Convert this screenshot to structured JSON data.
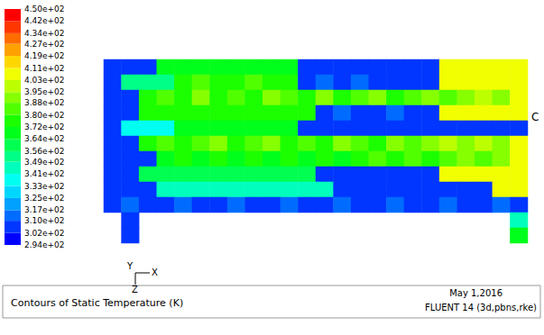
{
  "chart_data": {
    "type": "heatmap",
    "title": "Contours of Static Temperature (K)",
    "annotations": {
      "date": "May 1,2016",
      "solver": "FLUENT 14 (3d,pbns,rke)",
      "triad": [
        "Y",
        "X",
        "Z"
      ],
      "edge_label": "C"
    },
    "tick_labels": false,
    "cells": [
      [
        302,
        302,
        302,
        364,
        364,
        364,
        364,
        364,
        364,
        364,
        364,
        302,
        302,
        302,
        302,
        302,
        302,
        302,
        302,
        403,
        403,
        403,
        403,
        403
      ],
      [
        302,
        349,
        349,
        349,
        372,
        380,
        372,
        372,
        380,
        372,
        372,
        302,
        310,
        302,
        310,
        302,
        302,
        302,
        302,
        403,
        403,
        403,
        403,
        403
      ],
      [
        302,
        302,
        372,
        380,
        372,
        388,
        372,
        380,
        372,
        388,
        380,
        372,
        388,
        372,
        380,
        388,
        372,
        380,
        388,
        380,
        388,
        395,
        388,
        403
      ],
      [
        302,
        302,
        372,
        372,
        372,
        372,
        372,
        372,
        372,
        372,
        372,
        372,
        302,
        310,
        302,
        302,
        310,
        302,
        302,
        403,
        403,
        403,
        403,
        403
      ],
      [
        302,
        333,
        333,
        333,
        364,
        364,
        364,
        364,
        364,
        364,
        364,
        302,
        302,
        302,
        302,
        302,
        302,
        302,
        302,
        302,
        302,
        302,
        302,
        302
      ],
      [
        302,
        302,
        372,
        380,
        372,
        380,
        388,
        372,
        380,
        388,
        372,
        380,
        372,
        388,
        380,
        372,
        388,
        380,
        388,
        395,
        388,
        395,
        388,
        403
      ],
      [
        302,
        302,
        302,
        364,
        372,
        364,
        372,
        364,
        372,
        364,
        372,
        364,
        372,
        364,
        372,
        380,
        372,
        380,
        372,
        380,
        388,
        380,
        388,
        403
      ],
      [
        302,
        302,
        356,
        356,
        356,
        356,
        356,
        356,
        356,
        356,
        356,
        356,
        302,
        302,
        302,
        302,
        302,
        302,
        302,
        403,
        403,
        403,
        403,
        403
      ],
      [
        302,
        302,
        302,
        341,
        341,
        341,
        341,
        341,
        341,
        341,
        341,
        341,
        341,
        302,
        302,
        302,
        302,
        302,
        302,
        302,
        302,
        302,
        403,
        403
      ],
      [
        302,
        310,
        302,
        302,
        310,
        302,
        302,
        310,
        302,
        302,
        310,
        302,
        302,
        310,
        302,
        302,
        310,
        302,
        302,
        310,
        302,
        302,
        310,
        302
      ],
      [
        null,
        302,
        null,
        null,
        null,
        null,
        null,
        null,
        null,
        null,
        null,
        null,
        null,
        null,
        null,
        null,
        null,
        null,
        null,
        null,
        null,
        null,
        null,
        341
      ],
      [
        null,
        302,
        null,
        null,
        null,
        null,
        null,
        null,
        null,
        null,
        null,
        null,
        null,
        null,
        null,
        null,
        null,
        null,
        null,
        null,
        null,
        null,
        null,
        364
      ]
    ],
    "colorbar": {
      "range": [
        294,
        450
      ],
      "ticks": [
        {
          "value": 294,
          "label": "2.94e+02"
        },
        {
          "value": 302,
          "label": "3.02e+02"
        },
        {
          "value": 310,
          "label": "3.10e+02"
        },
        {
          "value": 317,
          "label": "3.17e+02"
        },
        {
          "value": 325,
          "label": "3.25e+02"
        },
        {
          "value": 333,
          "label": "3.33e+02"
        },
        {
          "value": 341,
          "label": "3.41e+02"
        },
        {
          "value": 349,
          "label": "3.49e+02"
        },
        {
          "value": 356,
          "label": "3.56e+02"
        },
        {
          "value": 364,
          "label": "3.64e+02"
        },
        {
          "value": 372,
          "label": "3.72e+02"
        },
        {
          "value": 380,
          "label": "3.80e+02"
        },
        {
          "value": 388,
          "label": "3.88e+02"
        },
        {
          "value": 395,
          "label": "3.95e+02"
        },
        {
          "value": 403,
          "label": "4.03e+02"
        },
        {
          "value": 411,
          "label": "4.11e+02"
        },
        {
          "value": 419,
          "label": "4.19e+02"
        },
        {
          "value": 427,
          "label": "4.27e+02"
        },
        {
          "value": 434,
          "label": "4.34e+02"
        },
        {
          "value": 442,
          "label": "4.42e+02"
        },
        {
          "value": 450,
          "label": "4.50e+02"
        }
      ]
    }
  }
}
